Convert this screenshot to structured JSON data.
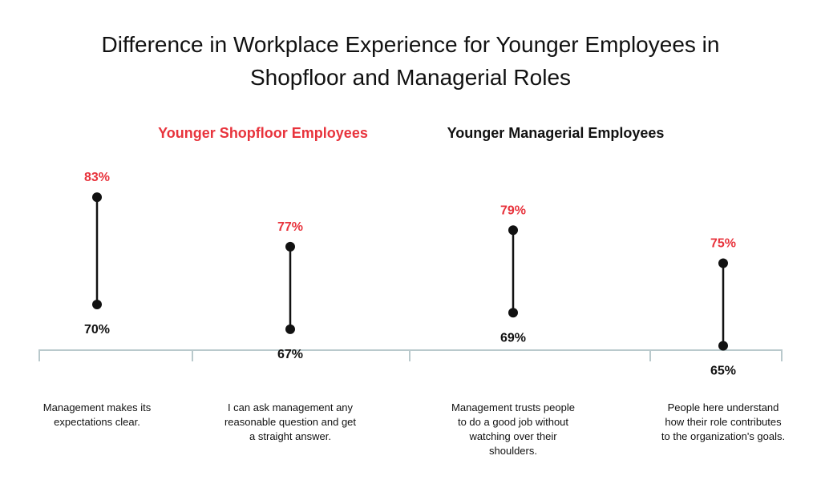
{
  "chart_data": {
    "type": "dumbbell",
    "title": "Difference in Workplace Experience for Younger Employees in Shopfloor and Managerial Roles",
    "title_lines": [
      "Difference in Workplace Experience for Younger Employees in",
      "Shopfloor and Managerial Roles"
    ],
    "legend_position": "top",
    "grid": false,
    "unit_suffix": "%",
    "series": [
      {
        "name": "Younger Shopfloor Employees",
        "color": "#e8333c",
        "values": [
          83,
          77,
          79,
          75
        ]
      },
      {
        "name": "Younger Managerial Employees",
        "color": "#111111",
        "values": [
          70,
          67,
          69,
          65
        ]
      }
    ],
    "series_labels": [
      "83%",
      "77%",
      "79%",
      "75%"
    ],
    "series2_labels": [
      "70%",
      "67%",
      "69%",
      "65%"
    ],
    "categories": [
      [
        "Management makes its",
        "expectations clear."
      ],
      [
        "I can ask management any",
        "reasonable question and get",
        "a straight answer."
      ],
      [
        "Management trusts people",
        "to do a good job without",
        "watching over their",
        "shoulders."
      ],
      [
        "People here understand",
        "how their role contributes",
        "to the organization's goals."
      ]
    ],
    "marker_color": "#111111",
    "axis_color": "#b9c9cc"
  }
}
